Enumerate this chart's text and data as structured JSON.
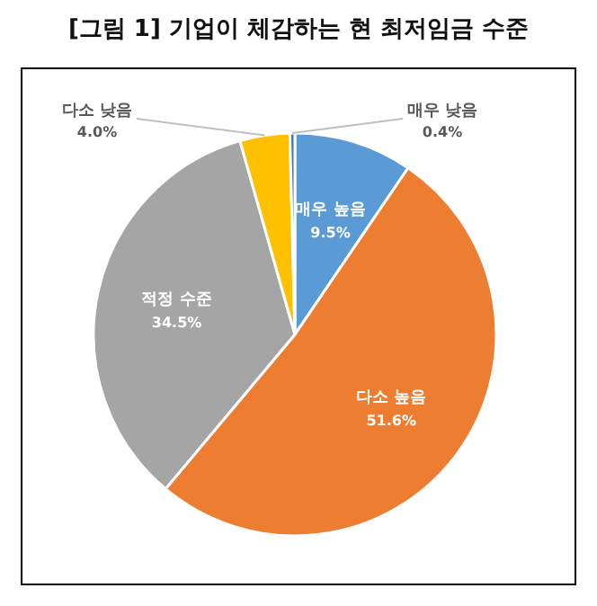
{
  "chart_data": {
    "type": "pie",
    "title": "[그림 1] 기업이 체감하는 현 최저임금 수준",
    "categories": [
      "매우 높음",
      "다소 높음",
      "적정 수준",
      "다소 낮음",
      "매우 낮음"
    ],
    "values": [
      9.5,
      51.6,
      34.5,
      4.0,
      0.4
    ],
    "value_labels": [
      "9.5%",
      "51.6%",
      "34.5%",
      "4.0%",
      "0.4%"
    ],
    "colors": [
      "#5b9bd5",
      "#ed7d31",
      "#a5a5a5",
      "#ffc000",
      "#4472c4"
    ]
  }
}
